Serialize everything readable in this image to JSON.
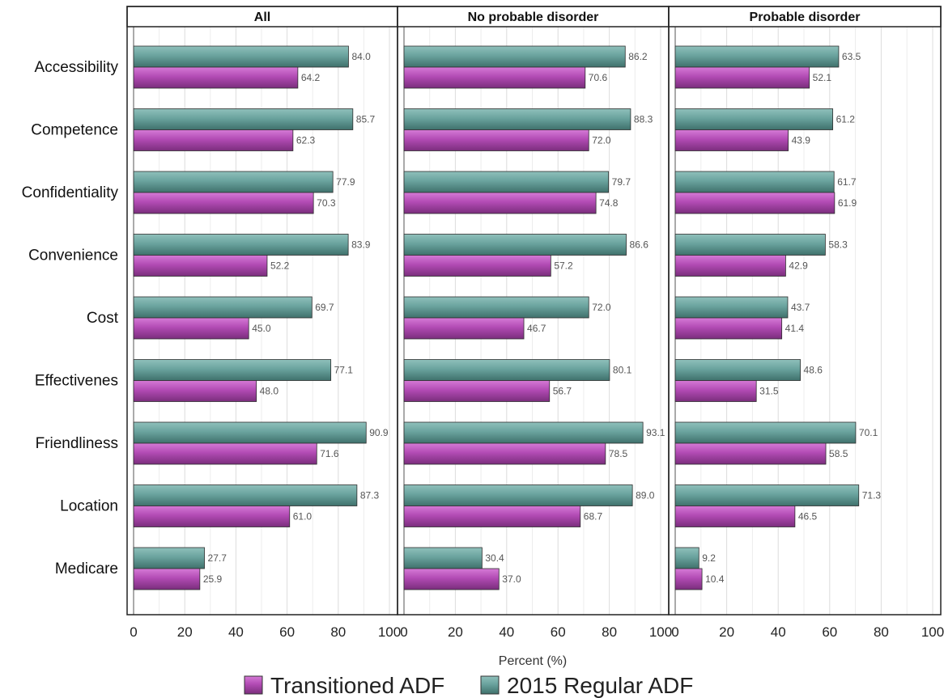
{
  "chart_data": {
    "type": "bar",
    "orientation": "horizontal",
    "xlabel": "Percent (%)",
    "xlim": [
      0,
      100
    ],
    "xticks": [
      0,
      20,
      40,
      60,
      80,
      100
    ],
    "grid": true,
    "legend_position": "bottom",
    "categories": [
      "Accessibility",
      "Competence",
      "Confidentiality",
      "Convenience",
      "Cost",
      "Effectivenes",
      "Friendliness",
      "Location",
      "Medicare"
    ],
    "series_names": [
      "Transitioned ADF",
      "2015 Regular ADF"
    ],
    "colors": {
      "Transitioned ADF": "#b24bb4",
      "2015 Regular ADF": "#5f9691"
    },
    "panels": [
      {
        "title": "All",
        "series": [
          {
            "name": "Transitioned ADF",
            "values": [
              64.2,
              62.3,
              70.3,
              52.2,
              45.0,
              48.0,
              71.6,
              61.0,
              25.9
            ]
          },
          {
            "name": "2015 Regular ADF",
            "values": [
              84.0,
              85.7,
              77.9,
              83.9,
              69.7,
              77.1,
              90.9,
              87.3,
              27.7
            ]
          }
        ]
      },
      {
        "title": "No probable disorder",
        "series": [
          {
            "name": "Transitioned ADF",
            "values": [
              70.6,
              72.0,
              74.8,
              57.2,
              46.7,
              56.7,
              78.5,
              68.7,
              37.0
            ]
          },
          {
            "name": "2015 Regular ADF",
            "values": [
              86.2,
              88.3,
              79.7,
              86.6,
              72.0,
              80.1,
              93.1,
              89.0,
              30.4
            ]
          }
        ]
      },
      {
        "title": "Probable disorder",
        "series": [
          {
            "name": "Transitioned ADF",
            "values": [
              52.1,
              43.9,
              61.9,
              42.9,
              41.4,
              31.5,
              58.5,
              46.5,
              10.4
            ]
          },
          {
            "name": "2015 Regular ADF",
            "values": [
              63.5,
              61.2,
              61.7,
              58.3,
              43.7,
              48.6,
              70.1,
              71.3,
              9.2
            ]
          }
        ]
      }
    ]
  }
}
